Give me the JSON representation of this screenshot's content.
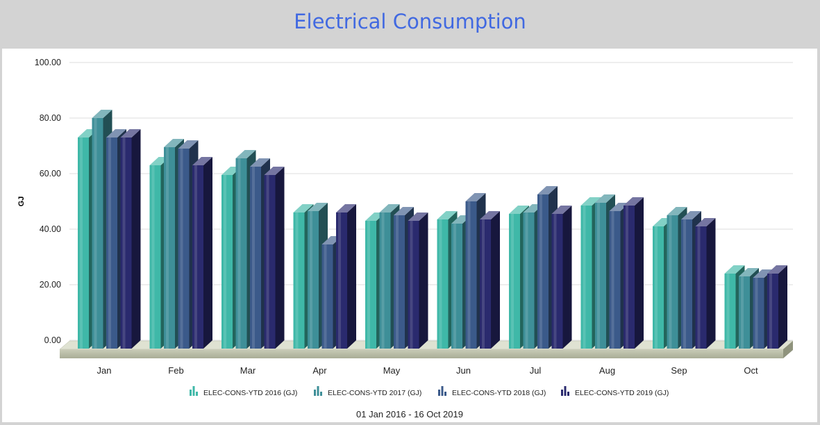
{
  "title": "Electrical Consumption",
  "date_range": "01 Jan 2016 - 16 Oct 2019",
  "chart_data": {
    "type": "bar",
    "title": "Electrical Consumption",
    "ylabel": "GJ",
    "xlabel": "",
    "ylim": [
      0,
      100
    ],
    "yticks": [
      "0.00",
      "20.00",
      "40.00",
      "60.00",
      "80.00",
      "100.00"
    ],
    "categories": [
      "Jan",
      "Feb",
      "Mar",
      "Apr",
      "May",
      "Jun",
      "Jul",
      "Aug",
      "Sep",
      "Oct"
    ],
    "series": [
      {
        "name": "ELEC-CONS-YTD 2016 (GJ)",
        "color": "#3fb8a8",
        "values": [
          73,
          63,
          59.5,
          46,
          43,
          43.5,
          45.5,
          48.5,
          41,
          24
        ]
      },
      {
        "name": "ELEC-CONS-YTD 2017 (GJ)",
        "color": "#3e8f98",
        "values": [
          80,
          69.5,
          65.5,
          46.5,
          46,
          42,
          46,
          49.5,
          45,
          23
        ]
      },
      {
        "name": "ELEC-CONS-YTD 2018 (GJ)",
        "color": "#3b5a8a",
        "values": [
          73,
          69,
          62.5,
          34.5,
          45,
          50,
          52.5,
          46.5,
          43.5,
          22.5
        ]
      },
      {
        "name": "ELEC-CONS-YTD 2019 (GJ)",
        "color": "#2a2a6e",
        "values": [
          73,
          63,
          59.5,
          46,
          43,
          43.5,
          45.5,
          48.5,
          41,
          24
        ]
      }
    ],
    "grid": true,
    "legend": "bottom"
  }
}
